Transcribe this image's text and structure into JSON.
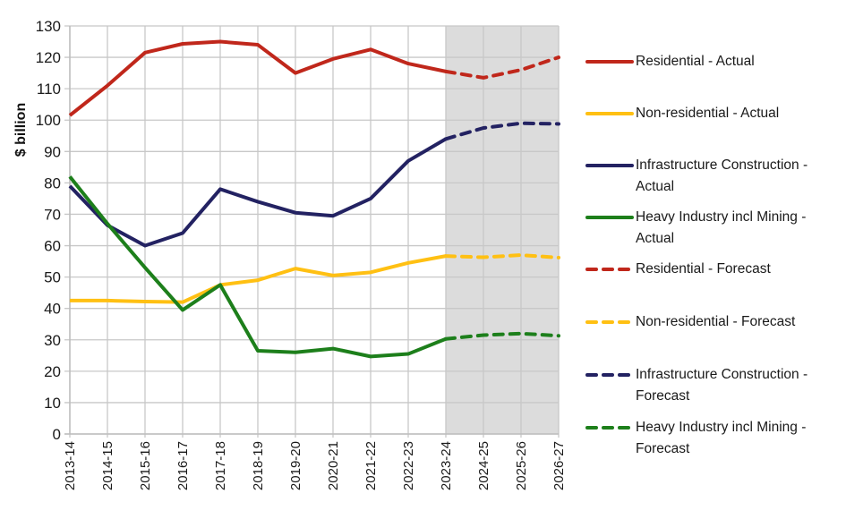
{
  "chart_data": {
    "type": "line",
    "title": "",
    "xlabel": "",
    "ylabel": "$ billion",
    "ylim": [
      0,
      130
    ],
    "yticks": [
      "0",
      "10",
      "20",
      "30",
      "40",
      "50",
      "60",
      "70",
      "80",
      "90",
      "100",
      "110",
      "120",
      "130"
    ],
    "ytick_values": [
      0,
      10,
      20,
      30,
      40,
      50,
      60,
      70,
      80,
      90,
      100,
      110,
      120,
      130
    ],
    "categories": [
      "2013-14",
      "2014-15",
      "2015-16",
      "2016-17",
      "2017-18",
      "2018-19",
      "2019-20",
      "2020-21",
      "2021-22",
      "2022-23",
      "2023-24",
      "2024-25",
      "2025-26",
      "2026-27"
    ],
    "grid": true,
    "forecast_shading": {
      "from": "2023-24",
      "to": "2026-27",
      "color": "#dcdcdc"
    },
    "legend_position": "right",
    "series": [
      {
        "name": "Residential - Actual",
        "color": "#c0271b",
        "style": "solid",
        "values": [
          101.5,
          111,
          121.5,
          124.3,
          125,
          124,
          115,
          119.5,
          122.5,
          118,
          115.5,
          null,
          null,
          null
        ]
      },
      {
        "name": "Non-residential - Actual",
        "color": "#ffc013",
        "style": "solid",
        "values": [
          42.5,
          42.5,
          42.2,
          42,
          47.5,
          49,
          52.7,
          50.5,
          51.5,
          54.5,
          56.7,
          null,
          null,
          null
        ]
      },
      {
        "name": "Infrastructure Construction - Actual",
        "color": "#232262",
        "style": "solid",
        "values": [
          79,
          66.5,
          60,
          64,
          78,
          74,
          70.5,
          69.5,
          75,
          87,
          94,
          null,
          null,
          null
        ]
      },
      {
        "name": "Heavy Industry incl Mining - Actual",
        "color": "#1d7f1b",
        "style": "solid",
        "values": [
          82,
          67,
          53,
          39.5,
          47.5,
          26.5,
          26,
          27.2,
          24.7,
          25.5,
          30.3,
          null,
          null,
          null
        ]
      },
      {
        "name": "Residential - Forecast",
        "color": "#c0271b",
        "style": "dashed",
        "values": [
          null,
          null,
          null,
          null,
          null,
          null,
          null,
          null,
          null,
          null,
          115.5,
          113.5,
          116,
          120
        ]
      },
      {
        "name": "Non-residential - Forecast",
        "color": "#ffc013",
        "style": "dashed",
        "values": [
          null,
          null,
          null,
          null,
          null,
          null,
          null,
          null,
          null,
          null,
          56.7,
          56.3,
          57,
          56.2
        ]
      },
      {
        "name": "Infrastructure Construction - Forecast",
        "color": "#232262",
        "style": "dashed",
        "values": [
          null,
          null,
          null,
          null,
          null,
          null,
          null,
          null,
          null,
          null,
          94,
          97.5,
          99,
          98.8
        ]
      },
      {
        "name": "Heavy Industry incl Mining - Forecast",
        "color": "#1d7f1b",
        "style": "dashed",
        "values": [
          null,
          null,
          null,
          null,
          null,
          null,
          null,
          null,
          null,
          null,
          30.3,
          31.5,
          32,
          31.3
        ]
      }
    ]
  },
  "legend": {
    "items": [
      {
        "line1": "Residential - Actual",
        "line2": ""
      },
      {
        "line1": "Non-residential - Actual",
        "line2": ""
      },
      {
        "line1": "Infrastructure Construction -",
        "line2": "Actual"
      },
      {
        "line1": "Heavy Industry incl Mining -",
        "line2": "Actual"
      },
      {
        "line1": "Residential - Forecast",
        "line2": ""
      },
      {
        "line1": "Non-residential - Forecast",
        "line2": ""
      },
      {
        "line1": "Infrastructure Construction -",
        "line2": "Forecast"
      },
      {
        "line1": "Heavy Industry incl Mining -",
        "line2": "Forecast"
      }
    ]
  }
}
